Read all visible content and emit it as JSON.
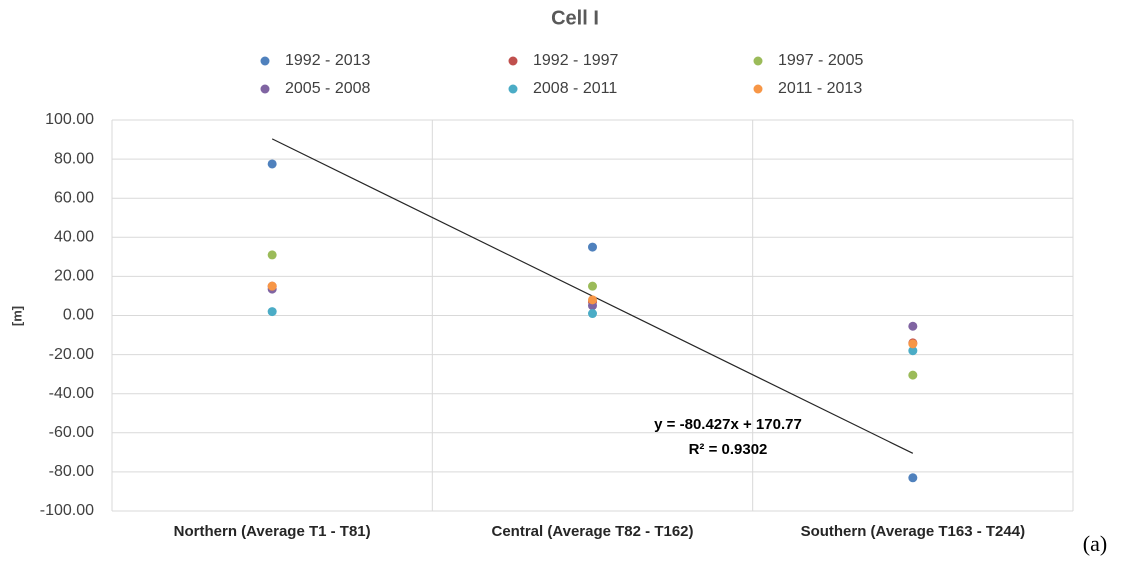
{
  "chart_data": {
    "type": "scatter",
    "title": "Cell I",
    "y_label": "[m]",
    "panel_label": "(a)",
    "categories": [
      "Northern (Average T1 - T81)",
      "Central (Average T82 - T162)",
      "Southern (Average T163 - T244)"
    ],
    "series": [
      {
        "name": "1992 - 2013",
        "color": "#4f81bd",
        "values": [
          77.5,
          35,
          -83
        ]
      },
      {
        "name": "1992 - 1997",
        "color": "#c0504d",
        "values": [
          15,
          7,
          -14
        ]
      },
      {
        "name": "1997 - 2005",
        "color": "#9bbb59",
        "values": [
          31,
          15,
          -30.5
        ]
      },
      {
        "name": "2005 - 2008",
        "color": "#8064a2",
        "values": [
          13.5,
          5,
          -5.5
        ]
      },
      {
        "name": "2008 - 2011",
        "color": "#4bacc6",
        "values": [
          2,
          1,
          -18
        ]
      },
      {
        "name": "2011 - 2013",
        "color": "#f79646",
        "values": [
          15,
          8,
          -14.5
        ]
      }
    ],
    "trendline": {
      "slope": -80.427,
      "intercept": 170.77,
      "label": "y = -80.427x + 170.77",
      "r2_label": "R² = 0.9302"
    },
    "ylim": [
      -100,
      100
    ],
    "yticks": [
      {
        "value": -100,
        "label": "-100.00"
      },
      {
        "value": -80,
        "label": "-80.00"
      },
      {
        "value": -60,
        "label": "-60.00"
      },
      {
        "value": -40,
        "label": "-40.00"
      },
      {
        "value": -20,
        "label": "-20.00"
      },
      {
        "value": 0,
        "label": "0.00"
      },
      {
        "value": 20,
        "label": "20.00"
      },
      {
        "value": 40,
        "label": "40.00"
      },
      {
        "value": 60,
        "label": "60.00"
      },
      {
        "value": 80,
        "label": "80.00"
      },
      {
        "value": 100,
        "label": "100.00"
      }
    ],
    "grid": true,
    "legend": "top"
  }
}
